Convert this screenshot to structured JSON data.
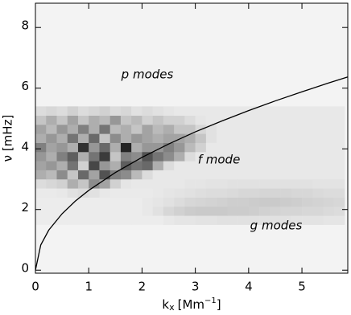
{
  "chart_data": {
    "type": "heatmap",
    "x_label": {
      "text": "k",
      "sub": "x",
      "unit": "[Mm",
      "sup": "−1",
      "close": "]"
    },
    "y_label": "ν [mHz]",
    "annotations": [
      "p modes",
      "f mode",
      "g modes"
    ],
    "xlim": [
      0,
      5.86
    ],
    "ylim": [
      -0.1,
      8.8
    ],
    "xticks": [
      0,
      1,
      2,
      3,
      4,
      5
    ],
    "yticks": [
      0,
      2,
      4,
      6,
      8
    ],
    "x_bins": [
      0,
      0.2,
      0.4,
      0.6,
      0.8,
      1,
      1.2,
      1.4,
      1.6,
      1.8,
      2,
      2.2,
      2.4,
      2.6,
      2.8,
      3,
      3.2,
      3.4,
      3.6,
      3.8,
      4,
      4.2,
      4.4,
      4.6,
      4.8,
      5,
      5.2,
      5.4,
      5.6,
      5.8
    ],
    "y_bins": [
      1.5,
      1.8,
      2.1,
      2.4,
      2.7,
      3,
      3.3,
      3.6,
      3.9,
      4.2,
      4.5,
      4.8,
      5.1,
      5.4
    ],
    "z": [
      [
        0.03,
        0.03,
        0.03,
        0.03,
        0.03,
        0.03,
        0.03,
        0.03,
        0.03,
        0.03,
        0.03,
        0.03,
        0.05,
        0.06,
        0.06,
        0.07,
        0.07,
        0.08,
        0.08,
        0.08,
        0.08,
        0.08,
        0.08,
        0.08,
        0.07,
        0.07,
        0.07,
        0.06,
        0.06
      ],
      [
        0.03,
        0.03,
        0.03,
        0.03,
        0.03,
        0.03,
        0.03,
        0.03,
        0.03,
        0.03,
        0.05,
        0.08,
        0.12,
        0.15,
        0.17,
        0.18,
        0.18,
        0.18,
        0.17,
        0.17,
        0.16,
        0.15,
        0.14,
        0.13,
        0.13,
        0.12,
        0.12,
        0.11,
        0.1
      ],
      [
        0.03,
        0.03,
        0.03,
        0.03,
        0.03,
        0.03,
        0.03,
        0.03,
        0.03,
        0.03,
        0.05,
        0.06,
        0.08,
        0.1,
        0.12,
        0.13,
        0.14,
        0.15,
        0.16,
        0.16,
        0.17,
        0.18,
        0.18,
        0.17,
        0.16,
        0.15,
        0.14,
        0.13,
        0.12
      ],
      [
        0.04,
        0.04,
        0.05,
        0.08,
        0.1,
        0.08,
        0.05,
        0.04,
        0.04,
        0.04,
        0.04,
        0.05,
        0.06,
        0.07,
        0.08,
        0.09,
        0.1,
        0.1,
        0.11,
        0.12,
        0.12,
        0.13,
        0.13,
        0.13,
        0.12,
        0.12,
        0.11,
        0.1,
        0.1
      ],
      [
        0.1,
        0.12,
        0.15,
        0.3,
        0.2,
        0.45,
        0.35,
        0.15,
        0.06,
        0.05,
        0.05,
        0.05,
        0.05,
        0.05,
        0.06,
        0.06,
        0.07,
        0.07,
        0.08,
        0.08,
        0.08,
        0.08,
        0.08,
        0.08,
        0.08,
        0.08,
        0.07,
        0.07,
        0.07
      ],
      [
        0.3,
        0.25,
        0.45,
        0.2,
        0.6,
        0.35,
        0.7,
        0.5,
        0.45,
        0.25,
        0.1,
        0.05,
        0.05,
        0.05,
        0.05,
        0.05,
        0.05,
        0.05,
        0.05,
        0.05,
        0.05,
        0.05,
        0.05,
        0.05,
        0.05,
        0.05,
        0.05,
        0.05,
        0.05
      ],
      [
        0.35,
        0.4,
        0.3,
        0.55,
        0.15,
        0.75,
        0.4,
        0.3,
        0.65,
        0.55,
        0.6,
        0.3,
        0.1,
        0.05,
        0.05,
        0.05,
        0.05,
        0.05,
        0.05,
        0.05,
        0.05,
        0.05,
        0.05,
        0.05,
        0.05,
        0.05,
        0.05,
        0.05,
        0.05
      ],
      [
        0.4,
        0.3,
        0.5,
        0.65,
        0.3,
        0.55,
        0.8,
        0.2,
        0.5,
        0.45,
        0.7,
        0.55,
        0.45,
        0.3,
        0.1,
        0.05,
        0.05,
        0.05,
        0.05,
        0.05,
        0.05,
        0.05,
        0.05,
        0.05,
        0.05,
        0.05,
        0.05,
        0.05,
        0.05
      ],
      [
        0.5,
        0.35,
        0.4,
        0.3,
        0.85,
        0.4,
        0.6,
        0.3,
        0.9,
        0.3,
        0.4,
        0.4,
        0.5,
        0.4,
        0.25,
        0.15,
        0.05,
        0.05,
        0.05,
        0.05,
        0.05,
        0.05,
        0.05,
        0.05,
        0.05,
        0.05,
        0.05,
        0.05,
        0.05
      ],
      [
        0.3,
        0.4,
        0.3,
        0.55,
        0.3,
        0.6,
        0.2,
        0.45,
        0.3,
        0.4,
        0.35,
        0.3,
        0.35,
        0.35,
        0.3,
        0.2,
        0.08,
        0.05,
        0.05,
        0.05,
        0.05,
        0.05,
        0.05,
        0.05,
        0.05,
        0.05,
        0.05,
        0.05,
        0.05
      ],
      [
        0.35,
        0.25,
        0.4,
        0.3,
        0.5,
        0.3,
        0.55,
        0.25,
        0.3,
        0.2,
        0.35,
        0.25,
        0.3,
        0.2,
        0.2,
        0.12,
        0.08,
        0.05,
        0.05,
        0.05,
        0.05,
        0.05,
        0.05,
        0.05,
        0.05,
        0.05,
        0.05,
        0.05,
        0.05
      ],
      [
        0.2,
        0.3,
        0.2,
        0.35,
        0.2,
        0.3,
        0.25,
        0.4,
        0.2,
        0.25,
        0.15,
        0.2,
        0.15,
        0.15,
        0.1,
        0.06,
        0.05,
        0.05,
        0.05,
        0.05,
        0.05,
        0.05,
        0.05,
        0.05,
        0.05,
        0.05,
        0.05,
        0.05,
        0.05
      ],
      [
        0.1,
        0.12,
        0.1,
        0.15,
        0.1,
        0.12,
        0.15,
        0.1,
        0.12,
        0.08,
        0.1,
        0.08,
        0.06,
        0.05,
        0.05,
        0.05,
        0.05,
        0.05,
        0.05,
        0.05,
        0.05,
        0.05,
        0.05,
        0.05,
        0.05,
        0.05,
        0.05,
        0.05,
        0.05
      ]
    ],
    "curve": {
      "color": "#000000",
      "x": [
        0,
        0.1,
        0.25,
        0.5,
        0.75,
        1,
        1.5,
        2,
        2.5,
        3,
        3.5,
        4,
        4.5,
        5,
        5.5,
        5.86
      ],
      "y": [
        0,
        0.83,
        1.32,
        1.86,
        2.28,
        2.63,
        3.22,
        3.72,
        4.16,
        4.56,
        4.92,
        5.26,
        5.58,
        5.88,
        6.17,
        6.37
      ]
    }
  }
}
